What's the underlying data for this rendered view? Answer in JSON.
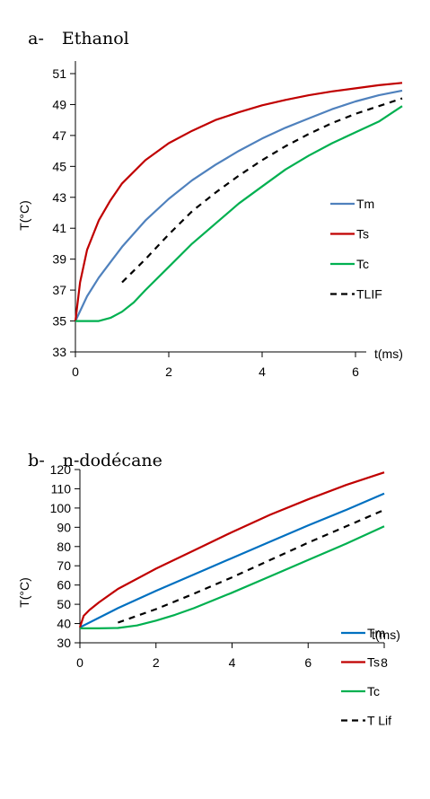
{
  "chart_data": [
    {
      "type": "line",
      "panel_label": "a-",
      "title": "Ethanol",
      "xlabel": "t(ms)",
      "ylabel": "T(°C)",
      "xlim": [
        0,
        7
      ],
      "ylim": [
        33,
        52
      ],
      "xticks": [
        0,
        2,
        4,
        6
      ],
      "yticks": [
        33,
        35,
        37,
        39,
        41,
        43,
        45,
        47,
        49,
        51
      ],
      "legend_position": "right",
      "grid": false,
      "series": [
        {
          "name": "Tm",
          "color": "#4f81bd",
          "dash": false,
          "x": [
            0,
            0.25,
            0.5,
            0.75,
            1,
            1.5,
            2,
            2.5,
            3,
            3.5,
            4,
            4.5,
            5,
            5.5,
            6,
            6.5,
            7
          ],
          "y": [
            35,
            36.6,
            37.8,
            38.8,
            39.8,
            41.5,
            42.9,
            44.1,
            45.1,
            46,
            46.8,
            47.5,
            48.1,
            48.7,
            49.2,
            49.6,
            49.9
          ]
        },
        {
          "name": "Ts",
          "color": "#c00000",
          "dash": false,
          "x": [
            0,
            0.1,
            0.25,
            0.5,
            0.75,
            1,
            1.5,
            2,
            2.5,
            3,
            3.5,
            4,
            4.5,
            5,
            5.5,
            6,
            6.5,
            7
          ],
          "y": [
            35,
            37.5,
            39.6,
            41.5,
            42.8,
            43.9,
            45.4,
            46.5,
            47.3,
            48,
            48.5,
            48.95,
            49.3,
            49.6,
            49.85,
            50.05,
            50.25,
            50.4
          ]
        },
        {
          "name": "Tc",
          "color": "#00b050",
          "dash": false,
          "x": [
            0,
            0.5,
            0.75,
            1,
            1.25,
            1.5,
            2,
            2.5,
            3,
            3.5,
            4,
            4.5,
            5,
            5.5,
            6,
            6.5,
            7
          ],
          "y": [
            35,
            35,
            35.2,
            35.6,
            36.2,
            37,
            38.5,
            40,
            41.3,
            42.6,
            43.7,
            44.8,
            45.7,
            46.5,
            47.2,
            47.9,
            48.9
          ]
        },
        {
          "name": "TLIF",
          "color": "#000000",
          "dash": true,
          "x": [
            1,
            1.5,
            2,
            2.5,
            3,
            3.5,
            4,
            4.5,
            5,
            5.5,
            6,
            6.5,
            7
          ],
          "y": [
            37.5,
            39,
            40.6,
            42.1,
            43.3,
            44.4,
            45.4,
            46.3,
            47.1,
            47.8,
            48.4,
            48.9,
            49.4
          ]
        }
      ]
    },
    {
      "type": "line",
      "panel_label": "b-",
      "title": "n-dodécane",
      "xlabel": "t(ms)",
      "ylabel": "T(°C)",
      "xlim": [
        0,
        8
      ],
      "ylim": [
        30,
        120
      ],
      "xticks": [
        0,
        2,
        4,
        6,
        8
      ],
      "yticks": [
        30,
        40,
        50,
        60,
        70,
        80,
        90,
        100,
        110,
        120
      ],
      "legend_position": "right",
      "grid": false,
      "series": [
        {
          "name": "Tm",
          "color": "#0070c0",
          "dash": false,
          "x": [
            0,
            0.5,
            1,
            2,
            3,
            4,
            5,
            6,
            7,
            8
          ],
          "y": [
            38,
            43,
            48,
            57,
            65.5,
            74,
            82.5,
            91,
            99,
            107.5
          ]
        },
        {
          "name": "Ts",
          "color": "#c00000",
          "dash": false,
          "x": [
            0,
            0.1,
            0.25,
            0.5,
            1,
            2,
            3,
            4,
            5,
            6,
            7,
            8
          ],
          "y": [
            38,
            44,
            47,
            51,
            58,
            68.5,
            78,
            87.5,
            96.5,
            104.5,
            112,
            118.5
          ]
        },
        {
          "name": "Tc",
          "color": "#00b050",
          "dash": false,
          "x": [
            0,
            0.5,
            1,
            1.5,
            2,
            2.5,
            3,
            4,
            5,
            6,
            7,
            8
          ],
          "y": [
            37.5,
            37.5,
            37.7,
            39,
            41.5,
            44.5,
            48,
            56,
            64.5,
            73,
            81.5,
            90.5
          ]
        },
        {
          "name": "T Lif",
          "color": "#000000",
          "dash": true,
          "x": [
            1,
            2,
            3,
            4,
            5,
            6,
            7,
            8
          ],
          "y": [
            40.5,
            47.5,
            55.5,
            64,
            73,
            82,
            90.5,
            99
          ]
        }
      ]
    }
  ]
}
